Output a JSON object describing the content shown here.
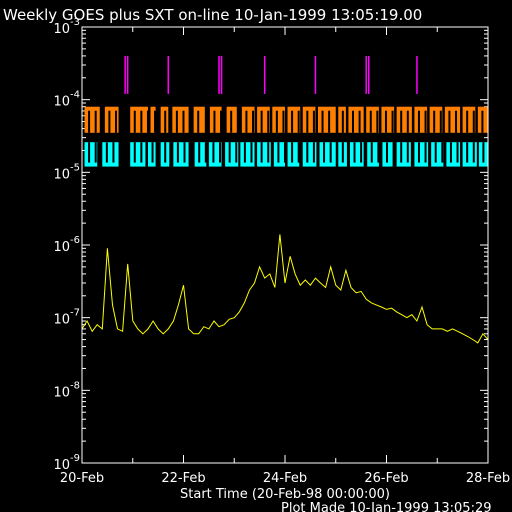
{
  "chart_data": {
    "type": "line",
    "title": "Weekly GOES plus SXT on-line 10-Jan-1999 13:05:19.00",
    "xlabel": "Start Time (20-Feb-98 00:00:00)",
    "footer": "Plot Made 10-Jan-1999 13:05:29",
    "x_ticks": [
      "20-Feb",
      "22-Feb",
      "24-Feb",
      "26-Feb",
      "28-Feb"
    ],
    "x_range_days": [
      0,
      8
    ],
    "y_scale": "log",
    "ylim": [
      1e-09,
      0.001
    ],
    "y_ticks": [
      {
        "exp": -3,
        "value": 0.001
      },
      {
        "exp": -4,
        "value": 0.0001
      },
      {
        "exp": -5,
        "value": 1e-05
      },
      {
        "exp": -6,
        "value": 1e-06
      },
      {
        "exp": -7,
        "value": 1e-07
      },
      {
        "exp": -8,
        "value": 1e-08
      },
      {
        "exp": -9,
        "value": 1e-09
      }
    ],
    "series": [
      {
        "color": "#ffff00",
        "x_days": [
          0.0,
          0.1,
          0.2,
          0.3,
          0.4,
          0.5,
          0.6,
          0.7,
          0.8,
          0.9,
          1.0,
          1.1,
          1.2,
          1.3,
          1.4,
          1.5,
          1.6,
          1.7,
          1.8,
          1.9,
          2.0,
          2.1,
          2.2,
          2.3,
          2.4,
          2.5,
          2.6,
          2.7,
          2.8,
          2.9,
          3.0,
          3.1,
          3.2,
          3.3,
          3.4,
          3.5,
          3.6,
          3.7,
          3.8,
          3.9,
          4.0,
          4.1,
          4.2,
          4.3,
          4.4,
          4.5,
          4.6,
          4.7,
          4.8,
          4.9,
          5.0,
          5.1,
          5.2,
          5.3,
          5.4,
          5.5,
          5.6,
          5.7,
          5.8,
          5.9,
          6.0,
          6.1,
          6.2,
          6.3,
          6.4,
          6.5,
          6.6,
          6.7,
          6.8,
          6.9,
          7.0,
          7.1,
          7.2,
          7.3,
          7.4,
          7.5,
          7.6,
          7.7,
          7.8,
          7.9,
          8.0
        ],
        "y": [
          7e-08,
          9e-08,
          6.5e-08,
          8e-08,
          7e-08,
          9e-07,
          1.5e-07,
          7e-08,
          6.5e-08,
          5.5e-07,
          9e-08,
          7e-08,
          6e-08,
          7e-08,
          9e-08,
          7e-08,
          6e-08,
          7e-08,
          9e-08,
          1.5e-07,
          2.8e-07,
          7e-08,
          6e-08,
          6e-08,
          7.5e-08,
          7e-08,
          9e-08,
          7.5e-08,
          8e-08,
          9.5e-08,
          1e-07,
          1.2e-07,
          1.6e-07,
          2.4e-07,
          3e-07,
          5e-07,
          3.5e-07,
          4e-07,
          2.6e-07,
          1.4e-06,
          3e-07,
          7e-07,
          4e-07,
          2.8e-07,
          3.3e-07,
          2.8e-07,
          3.5e-07,
          3e-07,
          2.6e-07,
          5e-07,
          2.8e-07,
          2.4e-07,
          4.5e-07,
          2.6e-07,
          2.2e-07,
          2.3e-07,
          1.8e-07,
          1.6e-07,
          1.5e-07,
          1.4e-07,
          1.3e-07,
          1.35e-07,
          1.2e-07,
          1.1e-07,
          1e-07,
          1.1e-07,
          9e-08,
          1.4e-07,
          8e-08,
          7e-08,
          7e-08,
          7e-08,
          6.5e-08,
          7e-08,
          6.5e-08,
          6e-08,
          5.5e-08,
          5e-08,
          4.5e-08,
          6e-08,
          5e-08
        ]
      },
      {
        "color": "#ff8000",
        "band": [
          3.5e-05,
          8e-05
        ],
        "blocks_days": [
          [
            0.05,
            0.35
          ],
          [
            0.45,
            0.72
          ],
          [
            0.95,
            1.3
          ],
          [
            1.35,
            1.45
          ],
          [
            1.55,
            1.7
          ],
          [
            1.78,
            2.1
          ],
          [
            2.2,
            2.42
          ],
          [
            2.52,
            2.75
          ],
          [
            2.85,
            3.05
          ],
          [
            3.15,
            3.4
          ],
          [
            3.45,
            3.7
          ],
          [
            3.75,
            4.0
          ],
          [
            4.05,
            4.3
          ],
          [
            4.35,
            4.6
          ],
          [
            4.65,
            5.0
          ],
          [
            5.05,
            5.2
          ],
          [
            5.25,
            5.55
          ],
          [
            5.6,
            5.85
          ],
          [
            5.9,
            6.15
          ],
          [
            6.2,
            6.5
          ],
          [
            6.55,
            6.8
          ],
          [
            6.85,
            7.1
          ],
          [
            7.15,
            7.45
          ],
          [
            7.5,
            7.75
          ],
          [
            7.8,
            8.0
          ]
        ]
      },
      {
        "color": "#00ffff",
        "band": [
          1.2e-05,
          2.6e-05
        ],
        "blocks_days": [
          [
            0.05,
            0.3
          ],
          [
            0.4,
            0.72
          ],
          [
            0.95,
            1.25
          ],
          [
            1.3,
            1.45
          ],
          [
            1.55,
            1.72
          ],
          [
            1.8,
            2.1
          ],
          [
            2.22,
            2.45
          ],
          [
            2.5,
            2.75
          ],
          [
            2.82,
            3.08
          ],
          [
            3.12,
            3.4
          ],
          [
            3.45,
            3.72
          ],
          [
            3.78,
            4.0
          ],
          [
            4.05,
            4.28
          ],
          [
            4.35,
            4.62
          ],
          [
            4.68,
            5.0
          ],
          [
            5.05,
            5.22
          ],
          [
            5.28,
            5.55
          ],
          [
            5.62,
            5.85
          ],
          [
            5.92,
            6.12
          ],
          [
            6.2,
            6.48
          ],
          [
            6.55,
            6.82
          ],
          [
            6.88,
            7.12
          ],
          [
            7.18,
            7.45
          ],
          [
            7.5,
            7.78
          ],
          [
            7.82,
            8.0
          ]
        ]
      },
      {
        "color": "#ff00ff",
        "band": [
          0.00012,
          0.0004
        ],
        "marks_days": [
          0.85,
          0.9,
          1.7,
          2.7,
          2.75,
          3.6,
          4.6,
          5.6,
          5.65,
          6.6
        ]
      }
    ]
  }
}
